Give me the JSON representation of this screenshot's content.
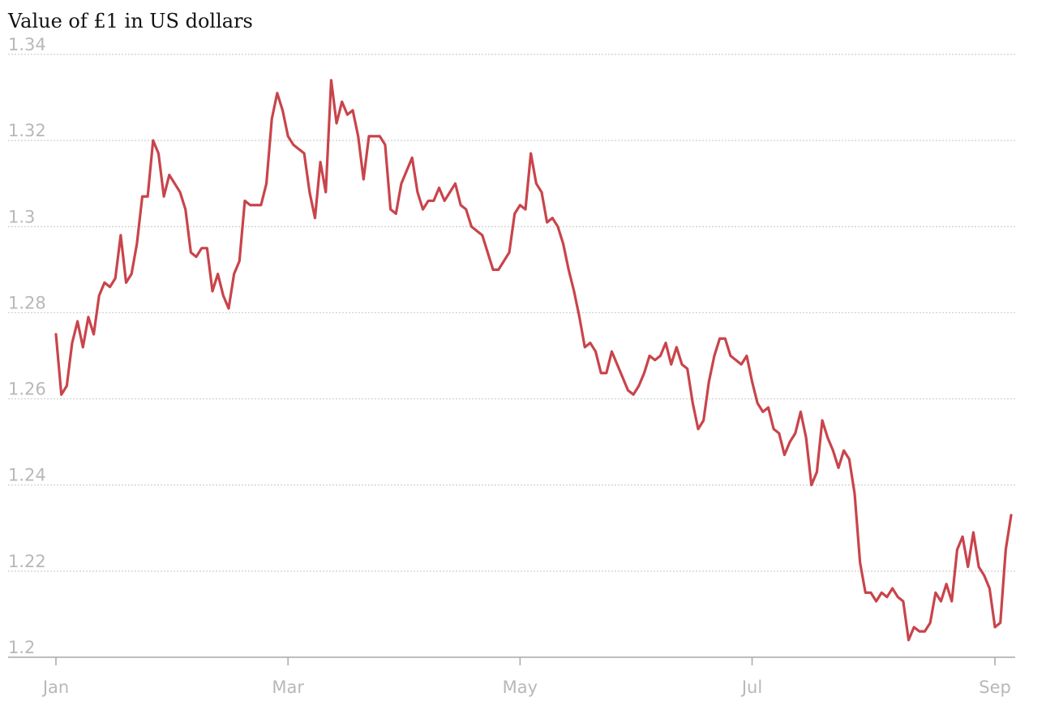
{
  "chart_data": {
    "type": "line",
    "title": "Value of £1 in US dollars",
    "categories": [
      "Jan",
      null,
      null,
      null,
      null,
      null,
      null,
      null,
      null,
      null,
      null,
      null,
      null,
      null,
      null,
      null,
      null,
      null,
      null,
      null,
      null,
      null,
      null,
      null,
      null,
      null,
      null,
      null,
      null,
      null,
      null,
      null,
      null,
      null,
      null,
      null,
      null,
      null,
      null,
      null,
      null,
      null,
      null,
      "Mar",
      null,
      null,
      null,
      null,
      null,
      null,
      null,
      null,
      null,
      null,
      null,
      null,
      null,
      null,
      null,
      null,
      null,
      null,
      null,
      null,
      null,
      null,
      null,
      null,
      null,
      null,
      null,
      null,
      null,
      null,
      null,
      null,
      null,
      null,
      null,
      null,
      null,
      null,
      null,
      null,
      null,
      null,
      "May",
      null,
      null,
      null,
      null,
      null,
      null,
      null,
      null,
      null,
      null,
      null,
      null,
      null,
      null,
      null,
      null,
      null,
      null,
      null,
      null,
      null,
      null,
      null,
      null,
      null,
      null,
      null,
      null,
      null,
      null,
      null,
      null,
      null,
      null,
      null,
      null,
      null,
      null,
      null,
      null,
      null,
      null,
      "Jul",
      null,
      null,
      null,
      null,
      null,
      null,
      null,
      null,
      null,
      null,
      null,
      null,
      null,
      null,
      null,
      null,
      null,
      null,
      null,
      null,
      null,
      null,
      null,
      null,
      null,
      null,
      null,
      null,
      null,
      null,
      null,
      null,
      null,
      null,
      null,
      null,
      null,
      null,
      null,
      null,
      null,
      null,
      null,
      null,
      "Sep",
      null,
      null,
      null
    ],
    "values": [
      1.275,
      1.261,
      1.263,
      1.273,
      1.278,
      1.272,
      1.279,
      1.275,
      1.284,
      1.287,
      1.286,
      1.288,
      1.298,
      1.287,
      1.289,
      1.296,
      1.307,
      1.307,
      1.32,
      1.317,
      1.307,
      1.312,
      1.31,
      1.308,
      1.304,
      1.294,
      1.293,
      1.295,
      1.295,
      1.285,
      1.289,
      1.284,
      1.281,
      1.289,
      1.292,
      1.306,
      1.305,
      1.305,
      1.305,
      1.31,
      1.325,
      1.331,
      1.327,
      1.321,
      1.319,
      1.318,
      1.317,
      1.308,
      1.302,
      1.315,
      1.308,
      1.334,
      1.324,
      1.329,
      1.326,
      1.327,
      1.321,
      1.311,
      1.321,
      1.321,
      1.321,
      1.319,
      1.304,
      1.303,
      1.31,
      1.313,
      1.316,
      1.308,
      1.304,
      1.306,
      1.306,
      1.309,
      1.306,
      1.308,
      1.31,
      1.305,
      1.304,
      1.3,
      1.299,
      1.298,
      1.294,
      1.29,
      1.29,
      1.292,
      1.294,
      1.303,
      1.305,
      1.304,
      1.317,
      1.31,
      1.308,
      1.301,
      1.302,
      1.3,
      1.296,
      1.29,
      1.285,
      1.279,
      1.272,
      1.273,
      1.271,
      1.266,
      1.266,
      1.271,
      1.268,
      1.265,
      1.262,
      1.261,
      1.263,
      1.266,
      1.27,
      1.269,
      1.27,
      1.273,
      1.268,
      1.272,
      1.268,
      1.267,
      1.259,
      1.253,
      1.255,
      1.264,
      1.27,
      1.274,
      1.274,
      1.27,
      1.269,
      1.268,
      1.27,
      1.264,
      1.259,
      1.257,
      1.258,
      1.253,
      1.252,
      1.247,
      1.25,
      1.252,
      1.257,
      1.251,
      1.24,
      1.243,
      1.255,
      1.251,
      1.248,
      1.244,
      1.248,
      1.246,
      1.238,
      1.222,
      1.215,
      1.215,
      1.213,
      1.215,
      1.214,
      1.216,
      1.214,
      1.213,
      1.204,
      1.207,
      1.206,
      1.206,
      1.208,
      1.215,
      1.213,
      1.217,
      1.213,
      1.225,
      1.228,
      1.221,
      1.229,
      1.221,
      1.219,
      1.216,
      1.207,
      1.208,
      1.225,
      1.233
    ],
    "color": "#c9444b",
    "ylim": [
      1.2,
      1.34
    ],
    "yticks": [
      1.2,
      1.22,
      1.24,
      1.26,
      1.28,
      1.3,
      1.32,
      1.34
    ],
    "grid": true
  }
}
